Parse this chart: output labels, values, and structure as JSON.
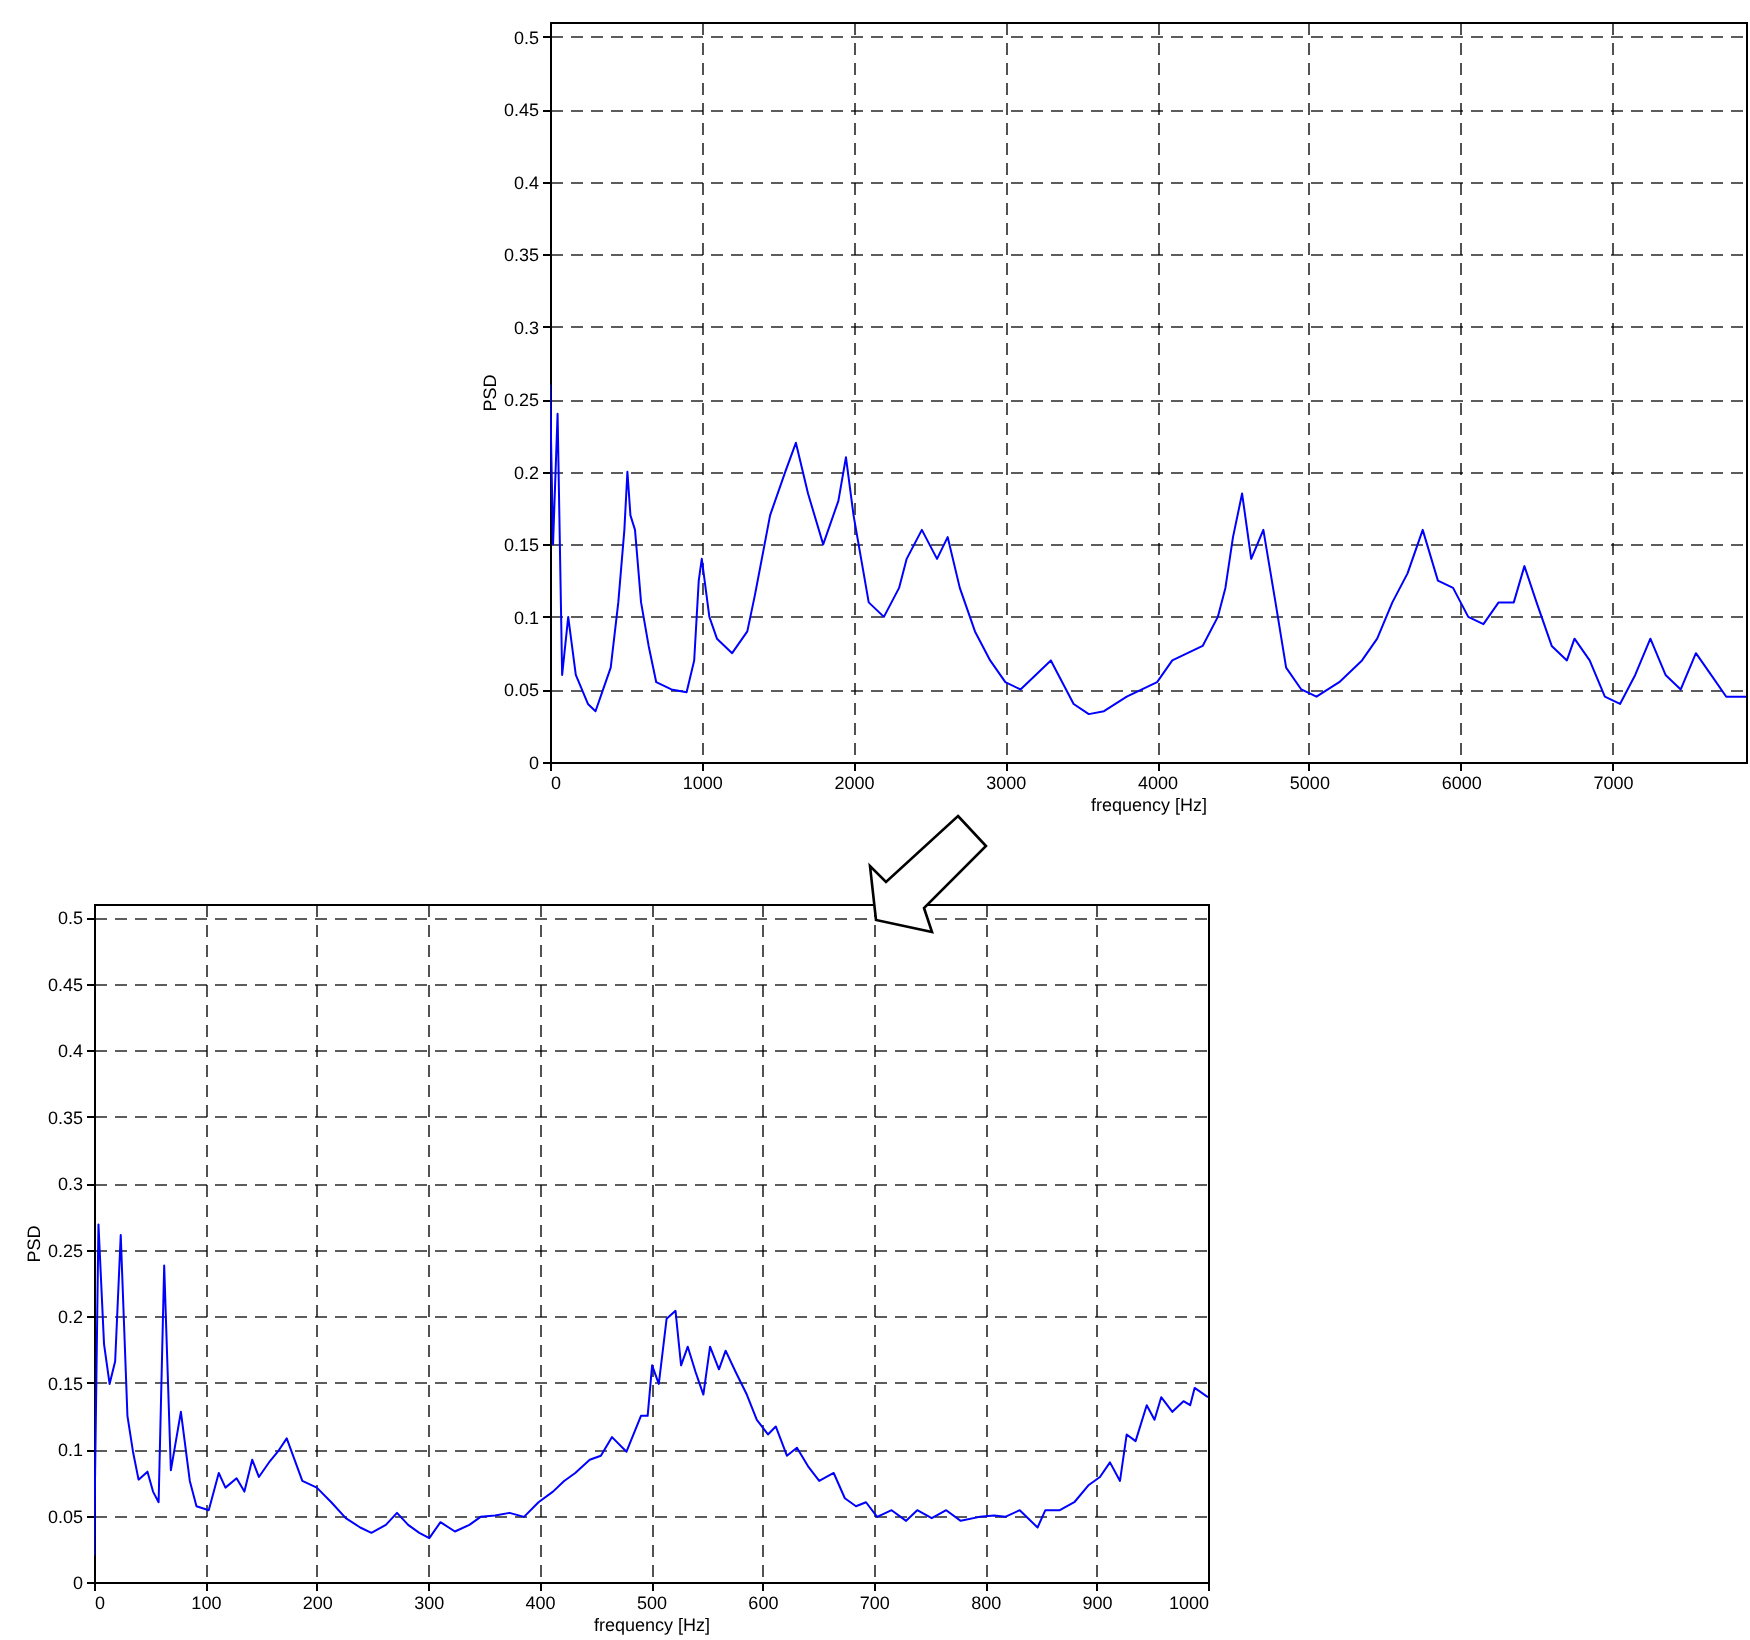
{
  "chart_data": [
    {
      "type": "line",
      "xlabel": "frequency [Hz]",
      "ylabel": "PSD",
      "x": [
        0,
        20,
        50,
        80,
        120,
        170,
        250,
        300,
        350,
        400,
        450,
        490,
        510,
        530,
        560,
        600,
        650,
        700,
        800,
        900,
        950,
        980,
        1000,
        1050,
        1100,
        1200,
        1300,
        1350,
        1450,
        1550,
        1620,
        1700,
        1800,
        1900,
        1950,
        2000,
        2050,
        2100,
        2200,
        2300,
        2350,
        2450,
        2550,
        2620,
        2700,
        2800,
        2900,
        3000,
        3100,
        3200,
        3300,
        3350,
        3450,
        3550,
        3650,
        3800,
        3900,
        4000,
        4100,
        4200,
        4300,
        4400,
        4450,
        4500,
        4560,
        4620,
        4700,
        4780,
        4850,
        4950,
        5050,
        5200,
        5350,
        5450,
        5550,
        5650,
        5750,
        5850,
        5950,
        6050,
        6150,
        6250,
        6350,
        6420,
        6500,
        6600,
        6700,
        6750,
        6850,
        6950,
        7050,
        7150,
        7250,
        7350,
        7450,
        7550,
        7650,
        7750,
        7880
      ],
      "series": [
        {
          "color": "#0000ff",
          "values": [
            0.26,
            0.15,
            0.24,
            0.06,
            0.1,
            0.06,
            0.04,
            0.035,
            0.05,
            0.065,
            0.11,
            0.16,
            0.2,
            0.17,
            0.16,
            0.11,
            0.08,
            0.055,
            0.05,
            0.048,
            0.07,
            0.125,
            0.14,
            0.1,
            0.085,
            0.075,
            0.09,
            0.115,
            0.17,
            0.2,
            0.22,
            0.185,
            0.15,
            0.18,
            0.21,
            0.17,
            0.14,
            0.11,
            0.1,
            0.12,
            0.14,
            0.16,
            0.14,
            0.155,
            0.12,
            0.09,
            0.07,
            0.055,
            0.05,
            0.06,
            0.07,
            0.06,
            0.04,
            0.033,
            0.035,
            0.045,
            0.05,
            0.055,
            0.07,
            0.075,
            0.08,
            0.1,
            0.12,
            0.155,
            0.185,
            0.14,
            0.16,
            0.11,
            0.065,
            0.05,
            0.045,
            0.055,
            0.07,
            0.085,
            0.11,
            0.13,
            0.16,
            0.125,
            0.12,
            0.1,
            0.095,
            0.11,
            0.11,
            0.135,
            0.11,
            0.08,
            0.07,
            0.085,
            0.07,
            0.045,
            0.04,
            0.06,
            0.085,
            0.06,
            0.05,
            0.075,
            0.06,
            0.045,
            0.045
          ]
        }
      ],
      "xlim": [
        0,
        7880
      ],
      "ylim": [
        0,
        0.51
      ],
      "xticks": [
        0,
        1000,
        2000,
        3000,
        4000,
        5000,
        6000,
        7000
      ],
      "yticks": [
        0,
        0.05,
        0.1,
        0.15,
        0.2,
        0.25,
        0.3,
        0.35,
        0.4,
        0.45,
        0.5
      ],
      "grid": true
    },
    {
      "type": "line",
      "xlabel": "frequency [Hz]",
      "ylabel": "PSD",
      "x": [
        0,
        4,
        9,
        14,
        19,
        24,
        30,
        35,
        40,
        48,
        53,
        58,
        63,
        69,
        78,
        86,
        92,
        103,
        112,
        118,
        128,
        135,
        142,
        148,
        158,
        165,
        173,
        187,
        200,
        213,
        226,
        239,
        249,
        262,
        272,
        282,
        292,
        301,
        311,
        324,
        337,
        347,
        360,
        373,
        386,
        399,
        412,
        422,
        432,
        445,
        455,
        465,
        478,
        491,
        497,
        501,
        507,
        514,
        522,
        527,
        533,
        540,
        547,
        553,
        561,
        567,
        576,
        586,
        595,
        605,
        612,
        622,
        631,
        641,
        651,
        664,
        674,
        684,
        693,
        703,
        716,
        729,
        739,
        752,
        765,
        778,
        795,
        808,
        818,
        831,
        847,
        854,
        867,
        880,
        893,
        903,
        912,
        921,
        927,
        935,
        945,
        952,
        958,
        968,
        978,
        984,
        988,
        1000
      ],
      "series": [
        {
          "color": "#0000ff",
          "values": [
            0.02,
            0.269,
            0.179,
            0.149,
            0.166,
            0.261,
            0.125,
            0.098,
            0.077,
            0.083,
            0.068,
            0.06,
            0.238,
            0.084,
            0.128,
            0.076,
            0.057,
            0.054,
            0.082,
            0.071,
            0.078,
            0.068,
            0.092,
            0.079,
            0.091,
            0.098,
            0.108,
            0.076,
            0.071,
            0.06,
            0.048,
            0.041,
            0.037,
            0.043,
            0.052,
            0.043,
            0.037,
            0.033,
            0.045,
            0.038,
            0.043,
            0.049,
            0.05,
            0.052,
            0.049,
            0.06,
            0.068,
            0.076,
            0.082,
            0.092,
            0.095,
            0.109,
            0.098,
            0.125,
            0.125,
            0.163,
            0.149,
            0.198,
            0.204,
            0.163,
            0.177,
            0.158,
            0.141,
            0.177,
            0.16,
            0.174,
            0.158,
            0.141,
            0.122,
            0.111,
            0.117,
            0.095,
            0.101,
            0.087,
            0.076,
            0.082,
            0.063,
            0.057,
            0.06,
            0.049,
            0.054,
            0.046,
            0.054,
            0.048,
            0.054,
            0.046,
            0.049,
            0.05,
            0.049,
            0.054,
            0.041,
            0.054,
            0.054,
            0.06,
            0.073,
            0.079,
            0.09,
            0.076,
            0.111,
            0.106,
            0.133,
            0.122,
            0.139,
            0.128,
            0.136,
            0.133,
            0.146,
            0.139
          ]
        }
      ],
      "xlim": [
        0,
        1000
      ],
      "ylim": [
        0,
        0.51
      ],
      "xticks": [
        0,
        100,
        200,
        300,
        400,
        500,
        600,
        700,
        800,
        900,
        1000
      ],
      "yticks": [
        0,
        0.05,
        0.1,
        0.15,
        0.2,
        0.25,
        0.3,
        0.35,
        0.4,
        0.45,
        0.5
      ],
      "grid": true
    }
  ]
}
